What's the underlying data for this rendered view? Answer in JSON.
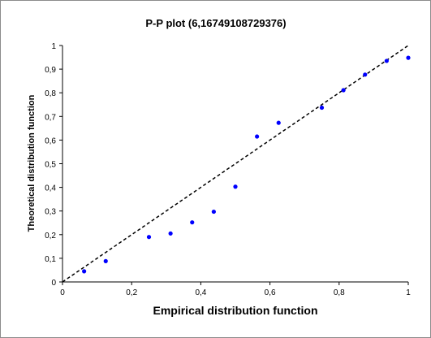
{
  "chart_data": {
    "type": "scatter",
    "title": "P-P plot (6,16749108729376)",
    "xlabel": "Empirical distribution  function",
    "ylabel": "Theoretical distribution function",
    "xlim": [
      0,
      1
    ],
    "ylim": [
      0,
      1
    ],
    "x_ticks": [
      "0",
      "0,2",
      "0,4",
      "0,6",
      "0,8",
      "1"
    ],
    "x_tick_values": [
      0,
      0.2,
      0.4,
      0.6,
      0.8,
      1
    ],
    "y_ticks": [
      "0",
      "0,1",
      "0,2",
      "0,3",
      "0,4",
      "0,5",
      "0,6",
      "0,7",
      "0,8",
      "0,9",
      "1"
    ],
    "y_tick_values": [
      0,
      0.1,
      0.2,
      0.3,
      0.4,
      0.5,
      0.6,
      0.7,
      0.8,
      0.9,
      1
    ],
    "grid": false,
    "reference_line": {
      "style": "dashed",
      "color": "#000000",
      "from": [
        0,
        0
      ],
      "to": [
        1,
        1
      ]
    },
    "series": [
      {
        "color": "#0000ff",
        "points": [
          {
            "x": 0.0625,
            "y": 0.045
          },
          {
            "x": 0.125,
            "y": 0.088
          },
          {
            "x": 0.25,
            "y": 0.19
          },
          {
            "x": 0.3125,
            "y": 0.205
          },
          {
            "x": 0.375,
            "y": 0.252
          },
          {
            "x": 0.4375,
            "y": 0.297
          },
          {
            "x": 0.5,
            "y": 0.403
          },
          {
            "x": 0.5625,
            "y": 0.615
          },
          {
            "x": 0.625,
            "y": 0.673
          },
          {
            "x": 0.75,
            "y": 0.737
          },
          {
            "x": 0.8125,
            "y": 0.811
          },
          {
            "x": 0.875,
            "y": 0.877
          },
          {
            "x": 0.9375,
            "y": 0.935
          },
          {
            "x": 1.0,
            "y": 0.948
          }
        ]
      }
    ]
  }
}
